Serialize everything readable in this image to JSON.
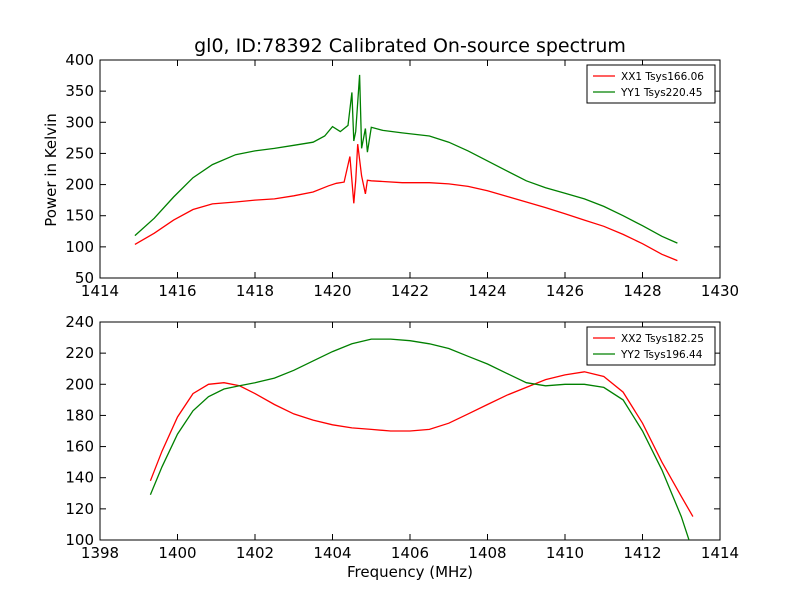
{
  "figure": {
    "title": "gl0, ID:78392 Calibrated On-source spectrum",
    "xlabel": "Frequency (MHz)",
    "ylabel": "Power in Kelvin"
  },
  "chart_data": [
    {
      "type": "line",
      "title": "gl0, ID:78392 Calibrated On-source spectrum",
      "ylabel": "Power in Kelvin",
      "xlim": [
        1414,
        1430
      ],
      "ylim": [
        50,
        400
      ],
      "xticks": [
        "1414",
        "1416",
        "1418",
        "1420",
        "1422",
        "1424",
        "1426",
        "1428",
        "1430"
      ],
      "yticks": [
        "50",
        "100",
        "150",
        "200",
        "250",
        "300",
        "350",
        "400"
      ],
      "legend": "top-right",
      "series": [
        {
          "name": "XX1 Tsys166.06",
          "color": "#ff0000",
          "x": [
            1414.9,
            1415.4,
            1415.9,
            1416.4,
            1416.9,
            1417.5,
            1418.0,
            1418.5,
            1419.0,
            1419.5,
            1419.9,
            1420.1,
            1420.3,
            1420.45,
            1420.55,
            1420.6,
            1420.65,
            1420.75,
            1420.85,
            1420.9,
            1421.0,
            1421.3,
            1421.8,
            1422.5,
            1423.0,
            1423.5,
            1424.0,
            1424.5,
            1425.0,
            1425.5,
            1426.0,
            1426.5,
            1427.0,
            1427.5,
            1428.0,
            1428.5,
            1428.9
          ],
          "y": [
            104,
            122,
            143,
            160,
            169,
            172,
            175,
            177,
            182,
            188,
            198,
            202,
            204,
            245,
            170,
            206,
            265,
            214,
            185,
            207,
            206,
            205,
            203,
            203,
            201,
            197,
            190,
            181,
            172,
            163,
            153,
            143,
            133,
            120,
            105,
            88,
            78
          ]
        },
        {
          "name": "YY1 Tsys220.45",
          "color": "#008000",
          "x": [
            1414.9,
            1415.4,
            1415.9,
            1416.4,
            1416.9,
            1417.5,
            1418.0,
            1418.5,
            1419.0,
            1419.5,
            1419.8,
            1420.0,
            1420.2,
            1420.4,
            1420.5,
            1420.55,
            1420.6,
            1420.7,
            1420.75,
            1420.85,
            1420.9,
            1421.0,
            1421.3,
            1421.8,
            1422.5,
            1423.0,
            1423.5,
            1424.0,
            1424.5,
            1425.0,
            1425.5,
            1426.0,
            1426.5,
            1427.0,
            1427.5,
            1428.0,
            1428.5,
            1428.9
          ],
          "y": [
            118,
            146,
            180,
            211,
            232,
            248,
            254,
            258,
            263,
            268,
            278,
            293,
            285,
            295,
            348,
            270,
            285,
            376,
            258,
            290,
            252,
            292,
            287,
            283,
            278,
            268,
            254,
            238,
            222,
            206,
            195,
            186,
            177,
            165,
            150,
            134,
            117,
            106
          ]
        }
      ]
    },
    {
      "type": "line",
      "xlabel": "Frequency (MHz)",
      "xlim": [
        1398,
        1414
      ],
      "ylim": [
        100,
        240
      ],
      "xticks": [
        "1398",
        "1400",
        "1402",
        "1404",
        "1406",
        "1408",
        "1410",
        "1412",
        "1414"
      ],
      "yticks": [
        "100",
        "120",
        "140",
        "160",
        "180",
        "200",
        "220",
        "240"
      ],
      "legend": "top-right",
      "series": [
        {
          "name": "XX2 Tsys182.25",
          "color": "#ff0000",
          "x": [
            1399.3,
            1399.6,
            1400.0,
            1400.4,
            1400.8,
            1401.2,
            1401.6,
            1402.0,
            1402.5,
            1403.0,
            1403.5,
            1404.0,
            1404.5,
            1405.0,
            1405.5,
            1406.0,
            1406.5,
            1407.0,
            1407.5,
            1408.0,
            1408.5,
            1409.0,
            1409.5,
            1410.0,
            1410.5,
            1411.0,
            1411.5,
            1412.0,
            1412.5,
            1413.0,
            1413.3
          ],
          "y": [
            138,
            157,
            179,
            194,
            200,
            201,
            199,
            194,
            187,
            181,
            177,
            174,
            172,
            171,
            170,
            170,
            171,
            175,
            181,
            187,
            193,
            198,
            203,
            206,
            208,
            205,
            195,
            175,
            150,
            128,
            115
          ]
        },
        {
          "name": "YY2 Tsys196.44",
          "color": "#008000",
          "x": [
            1399.3,
            1399.6,
            1400.0,
            1400.4,
            1400.8,
            1401.2,
            1401.6,
            1402.0,
            1402.5,
            1403.0,
            1403.5,
            1404.0,
            1404.5,
            1405.0,
            1405.5,
            1406.0,
            1406.5,
            1407.0,
            1407.5,
            1408.0,
            1408.5,
            1409.0,
            1409.5,
            1410.0,
            1410.5,
            1411.0,
            1411.5,
            1412.0,
            1412.5,
            1413.0,
            1413.2
          ],
          "y": [
            129,
            147,
            168,
            183,
            192,
            197,
            199,
            201,
            204,
            209,
            215,
            221,
            226,
            229,
            229,
            228,
            226,
            223,
            218,
            213,
            207,
            201,
            199,
            200,
            200,
            198,
            190,
            170,
            145,
            115,
            100
          ]
        }
      ]
    }
  ]
}
